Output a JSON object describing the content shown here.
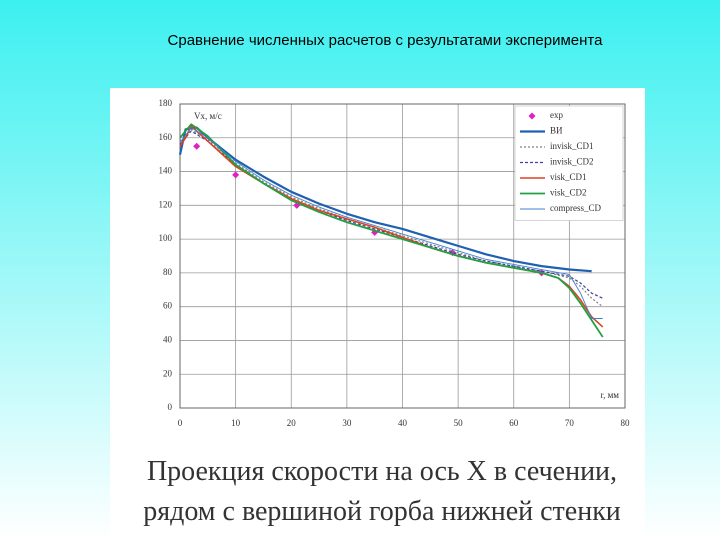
{
  "title": "Сравнение численных расчетов с результатами эксперимента",
  "caption": [
    "Проекция скорости на ось X в сечении,",
    "рядом с вершиной горба нижней стенки"
  ],
  "chart_data": {
    "type": "line",
    "y_label": "Vx, м/с",
    "x_label": "r, мм",
    "xlim": [
      0,
      80
    ],
    "xticks": [
      0,
      10,
      20,
      30,
      40,
      50,
      60,
      70,
      80
    ],
    "ylim": [
      0,
      180
    ],
    "yticks": [
      0,
      20,
      40,
      60,
      80,
      100,
      120,
      140,
      160,
      180
    ],
    "grid": true,
    "legend": "top-right",
    "series": [
      {
        "name": "exp",
        "color": "#e020c0",
        "marker": "diamond",
        "x": [
          3,
          10,
          21,
          35,
          49,
          65
        ],
        "values": [
          155,
          138,
          120,
          104,
          92,
          80
        ]
      },
      {
        "name": "ВИ",
        "color": "#2060b0",
        "width": 2.2,
        "x": [
          0,
          1,
          3,
          5,
          10,
          15,
          20,
          25,
          30,
          35,
          40,
          45,
          50,
          55,
          60,
          65,
          70,
          74
        ],
        "values": [
          150,
          165,
          166,
          160,
          147,
          137,
          128,
          121,
          115,
          110,
          106,
          101,
          96,
          91,
          87,
          84,
          82,
          81
        ]
      },
      {
        "name": "invisk_CD1",
        "color": "#808080",
        "dash": "2 2",
        "x": [
          0,
          2,
          5,
          10,
          15,
          20,
          25,
          30,
          35,
          40,
          45,
          50,
          55,
          60,
          65,
          70,
          72,
          74,
          76
        ],
        "values": [
          158,
          165,
          159,
          145,
          134,
          125,
          118,
          112,
          107,
          102,
          97,
          92,
          87,
          84,
          81,
          77,
          72,
          65,
          60
        ]
      },
      {
        "name": "invisk_CD2",
        "color": "#4040a0",
        "dash": "3 2",
        "x": [
          0,
          2,
          5,
          10,
          15,
          20,
          25,
          30,
          35,
          40,
          45,
          50,
          55,
          60,
          65,
          70,
          72,
          74,
          76
        ],
        "values": [
          156,
          164,
          158,
          144,
          133,
          124,
          117,
          111,
          106,
          101,
          96,
          91,
          87,
          84,
          81,
          78,
          74,
          68,
          65
        ]
      },
      {
        "name": "visk_CD1",
        "color": "#e04020",
        "width": 1.6,
        "x": [
          0,
          1,
          2,
          5,
          10,
          15,
          20,
          25,
          30,
          35,
          40,
          45,
          50,
          55,
          60,
          65,
          68,
          70,
          72,
          74,
          76
        ],
        "values": [
          155,
          160,
          167,
          158,
          143,
          133,
          124,
          117,
          112,
          107,
          101,
          95,
          90,
          86,
          83,
          80,
          77,
          72,
          64,
          54,
          48
        ]
      },
      {
        "name": "visk_CD2",
        "color": "#20a040",
        "width": 1.8,
        "x": [
          0,
          2,
          5,
          10,
          15,
          20,
          25,
          30,
          35,
          40,
          45,
          50,
          55,
          60,
          65,
          68,
          70,
          72,
          74,
          76
        ],
        "values": [
          160,
          168,
          161,
          144,
          133,
          123,
          116,
          110,
          105,
          100,
          95,
          90,
          86,
          83,
          80,
          77,
          71,
          62,
          52,
          42
        ]
      },
      {
        "name": "compress_CD",
        "color": "#4080d0",
        "width": 0.9,
        "x": [
          0,
          2,
          5,
          10,
          15,
          20,
          25,
          30,
          35,
          40,
          45,
          50,
          55,
          60,
          65,
          70,
          72,
          74,
          76
        ],
        "values": [
          157,
          166,
          160,
          146,
          135,
          126,
          119,
          113,
          108,
          103,
          98,
          93,
          88,
          85,
          82,
          79,
          68,
          53,
          53
        ]
      }
    ]
  }
}
